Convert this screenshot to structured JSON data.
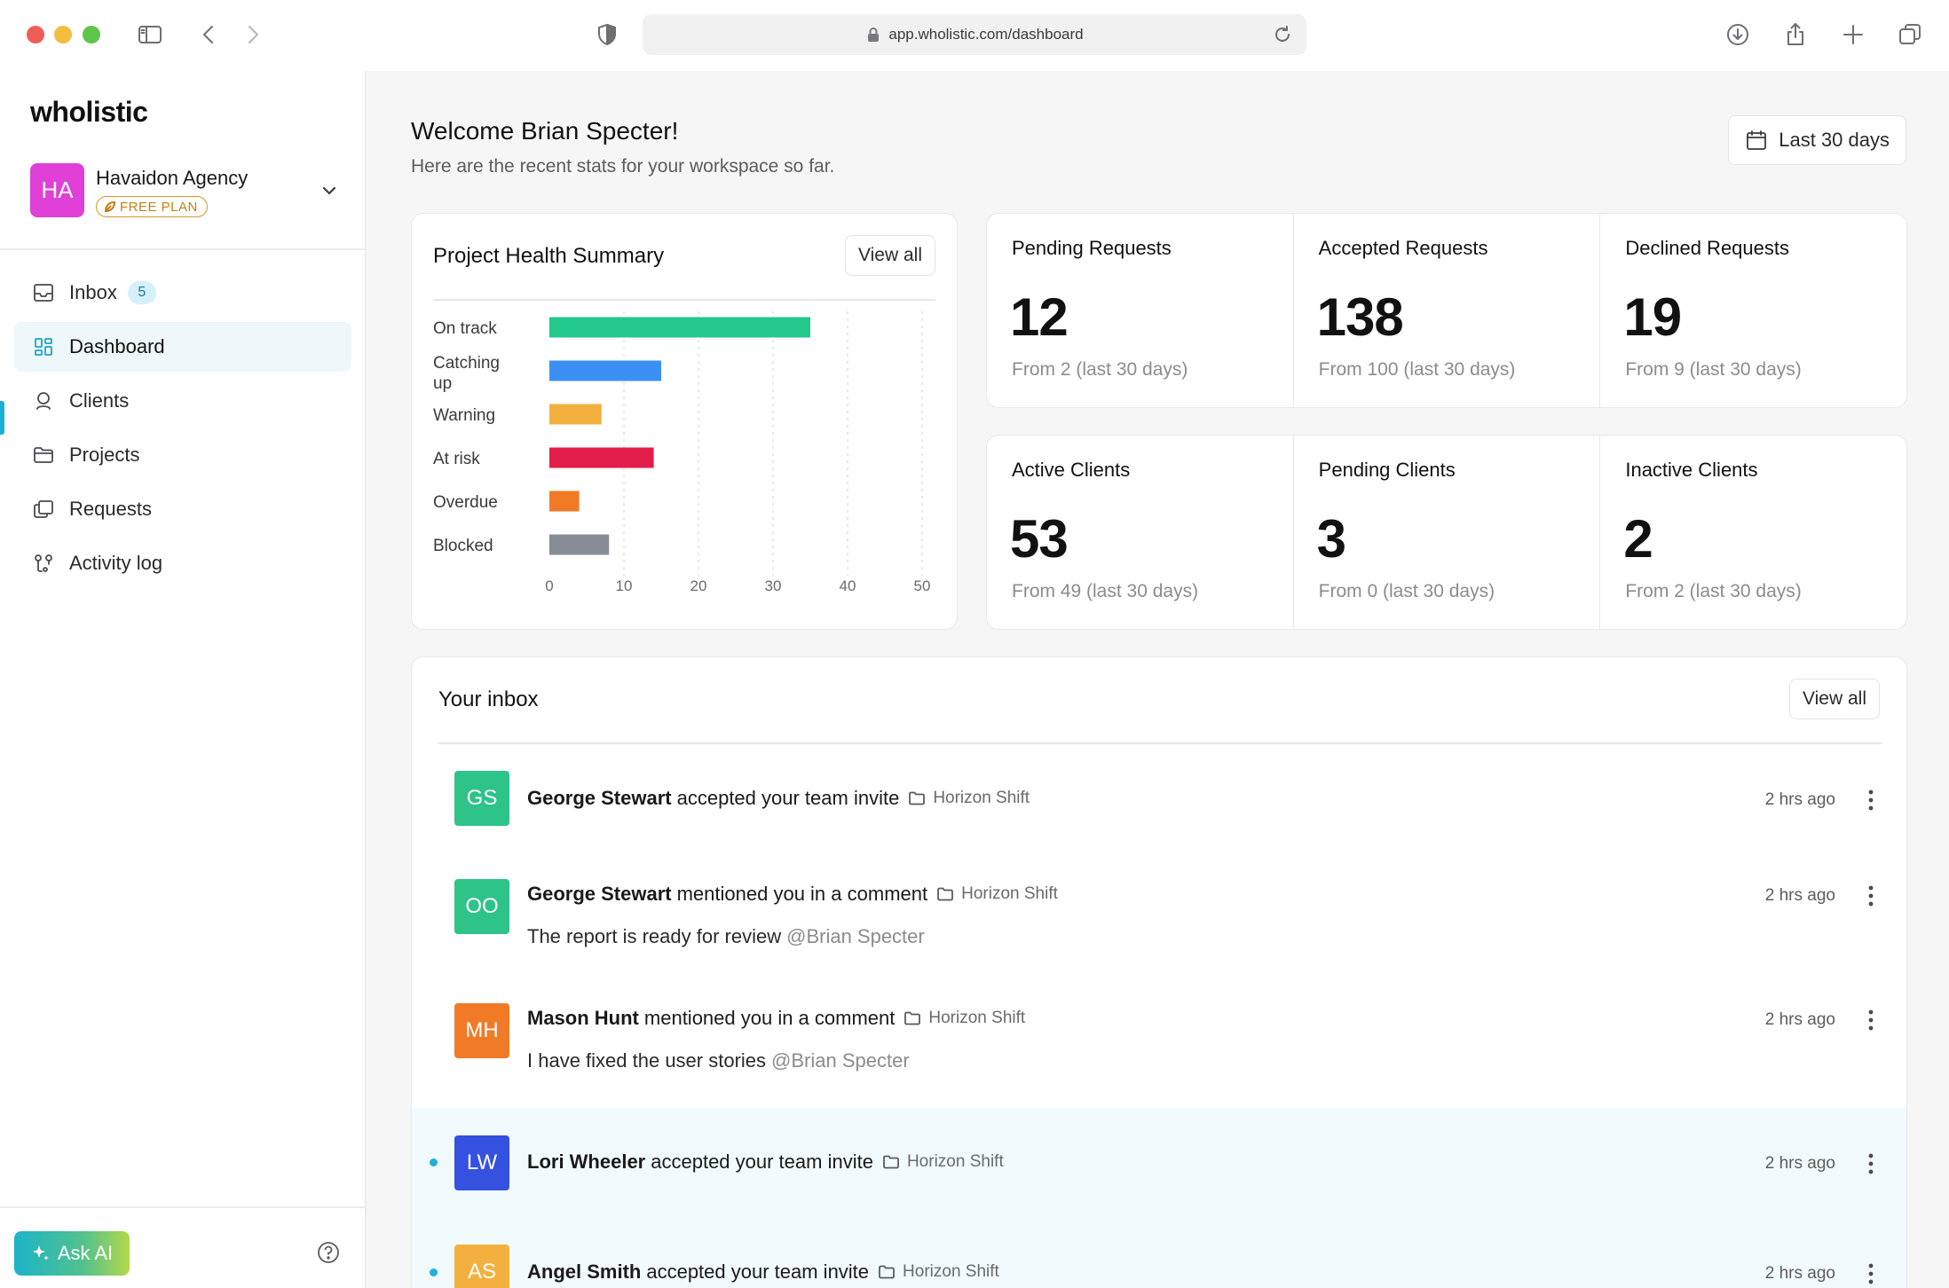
{
  "browser": {
    "url": "app.wholistic.com/dashboard"
  },
  "sidebar": {
    "brand": "wholistic",
    "workspace": {
      "initials": "HA",
      "name": "Havaidon Agency",
      "plan": "FREE PLAN",
      "avatar_color": "#e040d8"
    },
    "items": [
      {
        "label": "Inbox",
        "icon": "inbox-icon",
        "badge": "5"
      },
      {
        "label": "Dashboard",
        "icon": "dashboard-icon",
        "active": true
      },
      {
        "label": "Clients",
        "icon": "user-icon"
      },
      {
        "label": "Projects",
        "icon": "folder-icon"
      },
      {
        "label": "Requests",
        "icon": "requests-icon"
      },
      {
        "label": "Activity log",
        "icon": "activity-icon"
      }
    ],
    "ask_ai": "Ask AI"
  },
  "header": {
    "welcome": "Welcome Brian Specter!",
    "subtitle": "Here are the recent stats for your workspace so far.",
    "date_range": "Last 30 days"
  },
  "health": {
    "title": "Project Health Summary",
    "view_all": "View all"
  },
  "chart_data": {
    "type": "bar",
    "orientation": "horizontal",
    "title": "Project Health Summary",
    "categories": [
      "On track",
      "Catching up",
      "Warning",
      "At risk",
      "Overdue",
      "Blocked"
    ],
    "values": [
      35,
      15,
      7,
      14,
      4,
      8
    ],
    "colors": [
      "#22c98a",
      "#3b8ff5",
      "#f4b03f",
      "#e21d4a",
      "#f07a26",
      "#868d96"
    ],
    "xlim": [
      0,
      50
    ],
    "xticks": [
      0,
      10,
      20,
      30,
      40,
      50
    ],
    "grid": true
  },
  "stats": {
    "requests": [
      {
        "label": "Pending Requests",
        "value": "12",
        "sub": "From 2 (last 30 days)"
      },
      {
        "label": "Accepted Requests",
        "value": "138",
        "sub": "From 100 (last 30 days)"
      },
      {
        "label": "Declined Requests",
        "value": "19",
        "sub": "From 9 (last 30 days)"
      }
    ],
    "clients": [
      {
        "label": "Active Clients",
        "value": "53",
        "sub": "From 49 (last 30 days)"
      },
      {
        "label": "Pending Clients",
        "value": "3",
        "sub": "From 0 (last 30 days)"
      },
      {
        "label": "Inactive Clients",
        "value": "2",
        "sub": "From 2 (last 30 days)"
      }
    ]
  },
  "inbox": {
    "title": "Your inbox",
    "view_all": "View all",
    "messages": [
      {
        "initials": "GS",
        "color": "#2ec389",
        "name": "George Stewart",
        "action": "accepted your team invite",
        "project": "Horizon Shift",
        "time": "2 hrs ago",
        "unread": false
      },
      {
        "initials": "OO",
        "color": "#2ec389",
        "name": "George Stewart",
        "action": "mentioned you in a comment",
        "project": "Horizon Shift",
        "time": "2 hrs ago",
        "body": "The report is ready for review",
        "mention": "@Brian Specter",
        "unread": false
      },
      {
        "initials": "MH",
        "color": "#f07a26",
        "name": "Mason Hunt",
        "action": "mentioned you in a comment",
        "project": "Horizon Shift",
        "time": "2 hrs ago",
        "body": "I have fixed the user stories",
        "mention": "@Brian Specter",
        "unread": false
      },
      {
        "initials": "LW",
        "color": "#3451e0",
        "name": "Lori Wheeler",
        "action": "accepted your team invite",
        "project": "Horizon Shift",
        "time": "2 hrs ago",
        "unread": true
      },
      {
        "initials": "AS",
        "color": "#f4b03f",
        "name": "Angel Smith",
        "action": "accepted your team invite",
        "project": "Horizon Shift",
        "time": "2 hrs ago",
        "unread": true
      }
    ]
  }
}
